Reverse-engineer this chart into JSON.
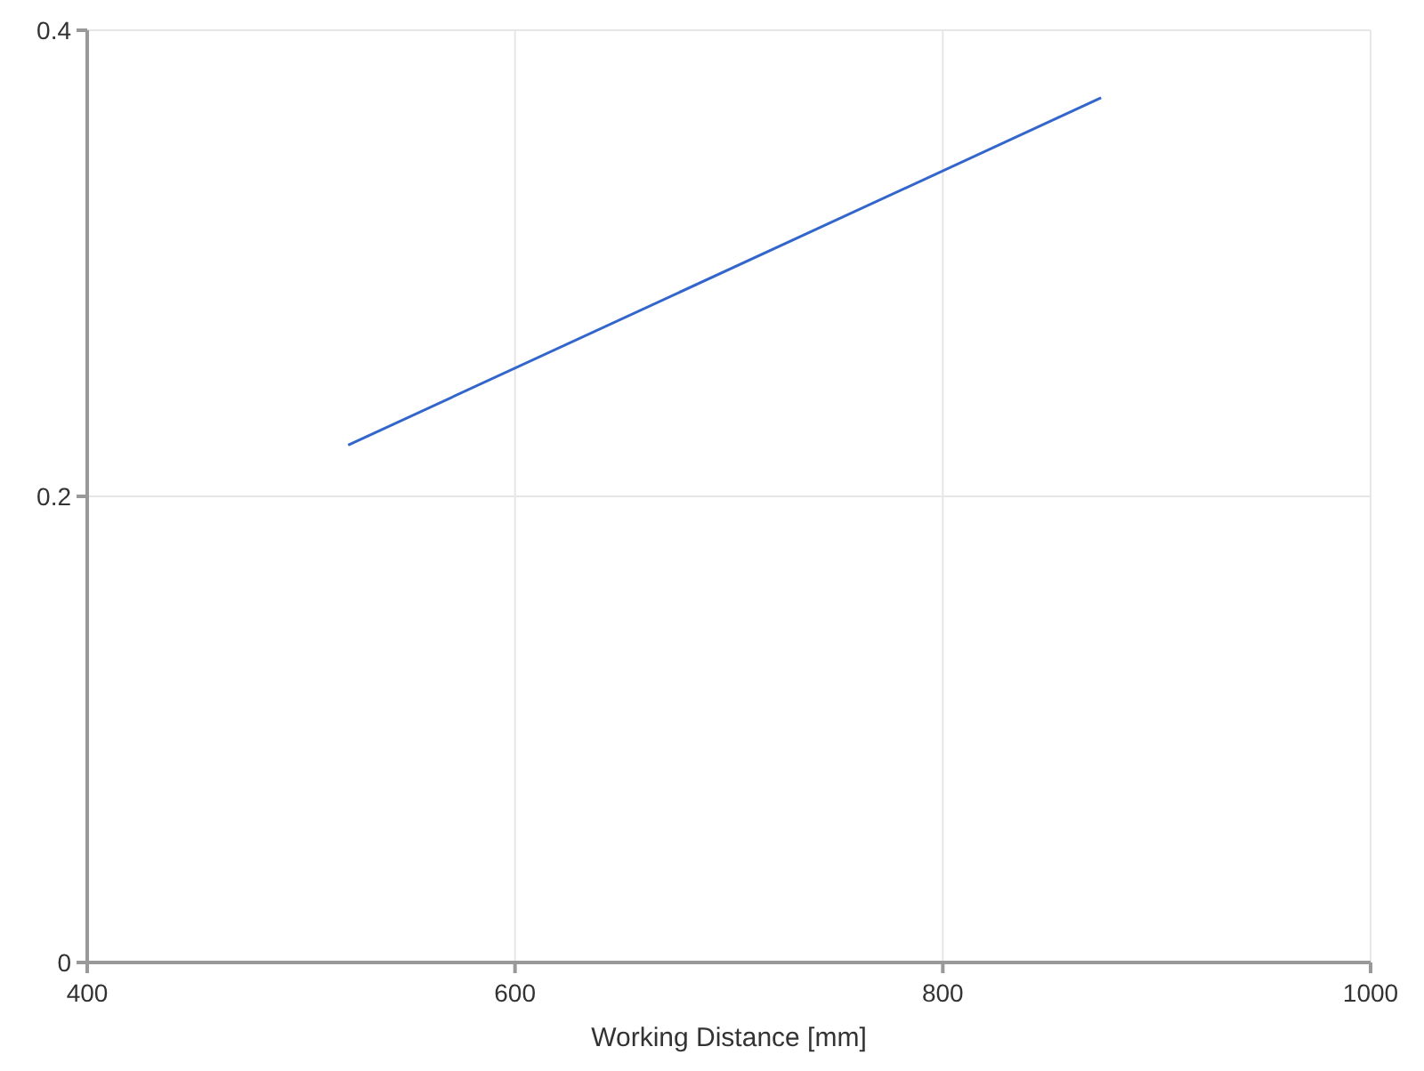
{
  "chart_data": {
    "type": "line",
    "xlabel": "Working Distance [mm]",
    "x": [
      522,
      874
    ],
    "series": [
      {
        "color": "#3366cc",
        "values": [
          0.222,
          0.371
        ]
      }
    ],
    "xlim": [
      400,
      1000
    ],
    "xticks": [
      400,
      600,
      800,
      1000
    ],
    "ylim": [
      0,
      0.4
    ],
    "yticks": [
      0,
      0.2,
      0.4
    ],
    "grid": true,
    "line_style": "solid",
    "marker": "none"
  }
}
